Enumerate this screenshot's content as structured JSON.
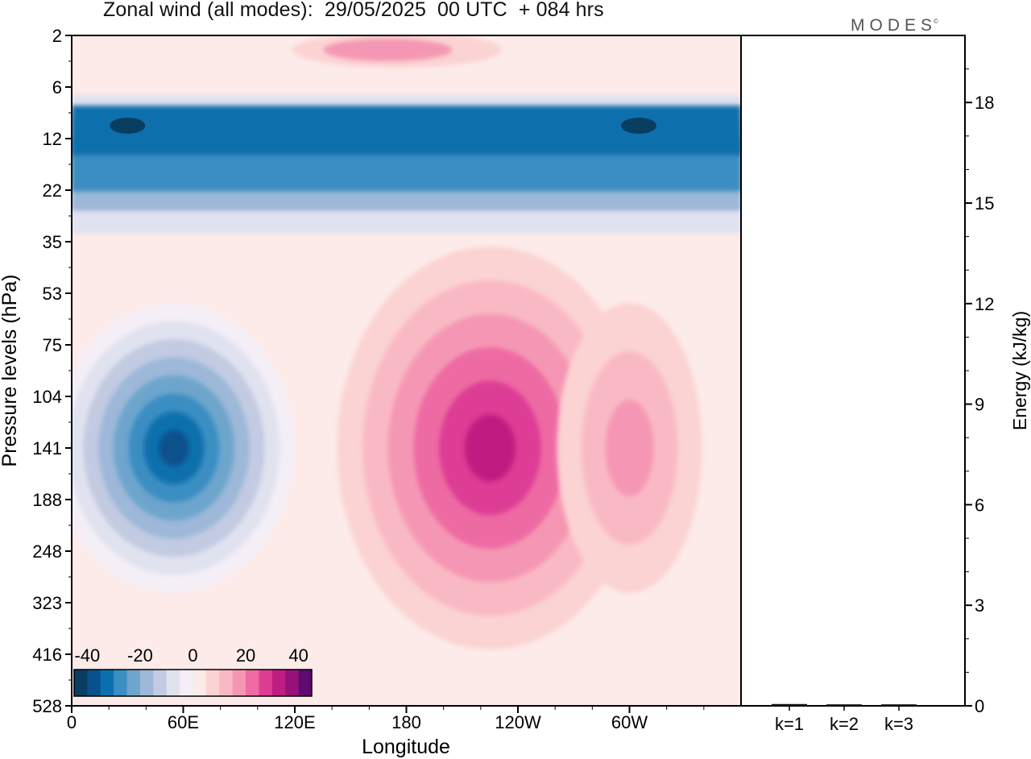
{
  "chart_data": [
    {
      "type": "heatmap",
      "title": "Zonal wind (all modes):  29/05/2025  00 UTC  + 084 hrs",
      "xlabel": "Longitude",
      "ylabel": "Pressure levels (hPa)",
      "x_ticks": [
        "0",
        "60E",
        "120E",
        "180",
        "120W",
        "60W"
      ],
      "x_tick_degrees": [
        0,
        60,
        120,
        180,
        240,
        300
      ],
      "xlim": [
        0,
        360
      ],
      "y_ticks": [
        "2",
        "6",
        "12",
        "22",
        "35",
        "53",
        "75",
        "104",
        "141",
        "188",
        "248",
        "323",
        "416",
        "528"
      ],
      "y_scale": "level-index (nonlinear, inverted)",
      "colorbar": {
        "tick_labels": [
          "-40",
          "-20",
          "0",
          "20",
          "40"
        ],
        "tick_values": [
          -40,
          -20,
          0,
          20,
          40
        ],
        "min": -45,
        "max": 45,
        "step": 5,
        "colors": [
          "#0a3d62",
          "#08518c",
          "#0c6fad",
          "#3a8ec2",
          "#6da5cd",
          "#9db8d8",
          "#c2cbe2",
          "#e0e2ef",
          "#f4eef6",
          "#fdebe9",
          "#fbd3d3",
          "#f9b9c4",
          "#f597b4",
          "#ee6ba3",
          "#dd3e94",
          "#bf1d82",
          "#97117a",
          "#5e0a6e"
        ]
      },
      "features": [
        {
          "desc": "stratospheric easterly band",
          "level_range": [
            "6",
            "35"
          ],
          "value": -35,
          "extra_core_value": -45
        },
        {
          "desc": "easterly core over Indian Ocean",
          "lon_center": 55,
          "level": "141",
          "value": -38
        },
        {
          "desc": "westerly jet core over central Pacific",
          "lon_center": 225,
          "level": "141",
          "value": 28
        },
        {
          "desc": "upper westerlies",
          "level": "2",
          "value": 18
        },
        {
          "desc": "westerly maximum over western Atlantic",
          "lon_center": 300,
          "level": "141",
          "value": 15
        }
      ]
    },
    {
      "type": "bar",
      "ylabel": "Energy (kJ/kg)",
      "categories": [
        "k=1",
        "k=2",
        "k=3"
      ],
      "values": [
        0.03,
        0.02,
        0.02
      ],
      "ylim": [
        0,
        20
      ],
      "y_ticks": [
        "0",
        "3",
        "6",
        "9",
        "12",
        "15",
        "18"
      ],
      "y_tick_values": [
        0,
        3,
        6,
        9,
        12,
        15,
        18
      ]
    }
  ],
  "logo": {
    "text": "MODES",
    "mark": "©"
  }
}
